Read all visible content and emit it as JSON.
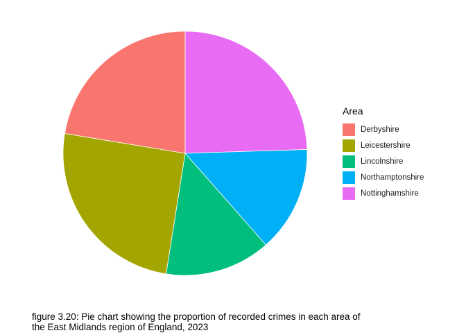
{
  "chart_data": {
    "type": "pie",
    "legend_title": "Area",
    "legend_position": "right",
    "categories": [
      "Derbyshire",
      "Leicestershire",
      "Lincolnshire",
      "Northamptonshire",
      "Nottinghamshire"
    ],
    "values": [
      22.4,
      25.1,
      14.0,
      14.0,
      24.5
    ],
    "colors": [
      "#F8766D",
      "#A3A500",
      "#00BF7D",
      "#00B0F6",
      "#E76BF3"
    ],
    "slice_order_clockwise_from_top": [
      "Nottinghamshire",
      "Northamptonshire",
      "Lincolnshire",
      "Leicestershire",
      "Derbyshire"
    ]
  },
  "caption": {
    "line1": "figure 3.20: Pie chart showing the proportion of recorded crimes in each area of",
    "line2": "the East Midlands region of England, 2023"
  }
}
